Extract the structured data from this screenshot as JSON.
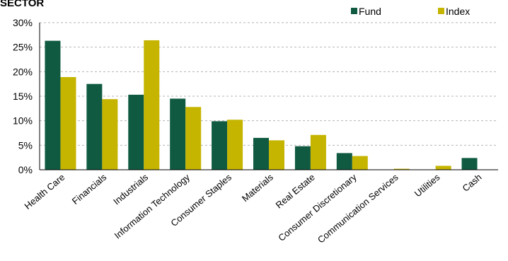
{
  "chart_data": {
    "type": "bar",
    "title": "SECTOR",
    "categories": [
      "Health Care",
      "Financials",
      "Industrials",
      "Information Technology",
      "Consumer Staples",
      "Materials",
      "Real Estate",
      "Consumer Discretionary",
      "Communication Services",
      "Utilities",
      "Cash"
    ],
    "series": [
      {
        "name": "Fund",
        "color": "#0f5a41",
        "values": [
          26.3,
          17.5,
          15.3,
          14.5,
          9.9,
          6.5,
          4.8,
          3.4,
          0,
          0,
          2.4
        ]
      },
      {
        "name": "Index",
        "color": "#c5b400",
        "values": [
          18.9,
          14.4,
          26.4,
          12.8,
          10.2,
          6.0,
          7.1,
          2.8,
          0.2,
          0.8,
          0
        ]
      }
    ],
    "ylim": [
      0,
      30
    ],
    "yticks": [
      "0%",
      "5%",
      "10%",
      "15%",
      "20%",
      "25%",
      "30%"
    ],
    "grid": true,
    "legend": "top-right"
  }
}
